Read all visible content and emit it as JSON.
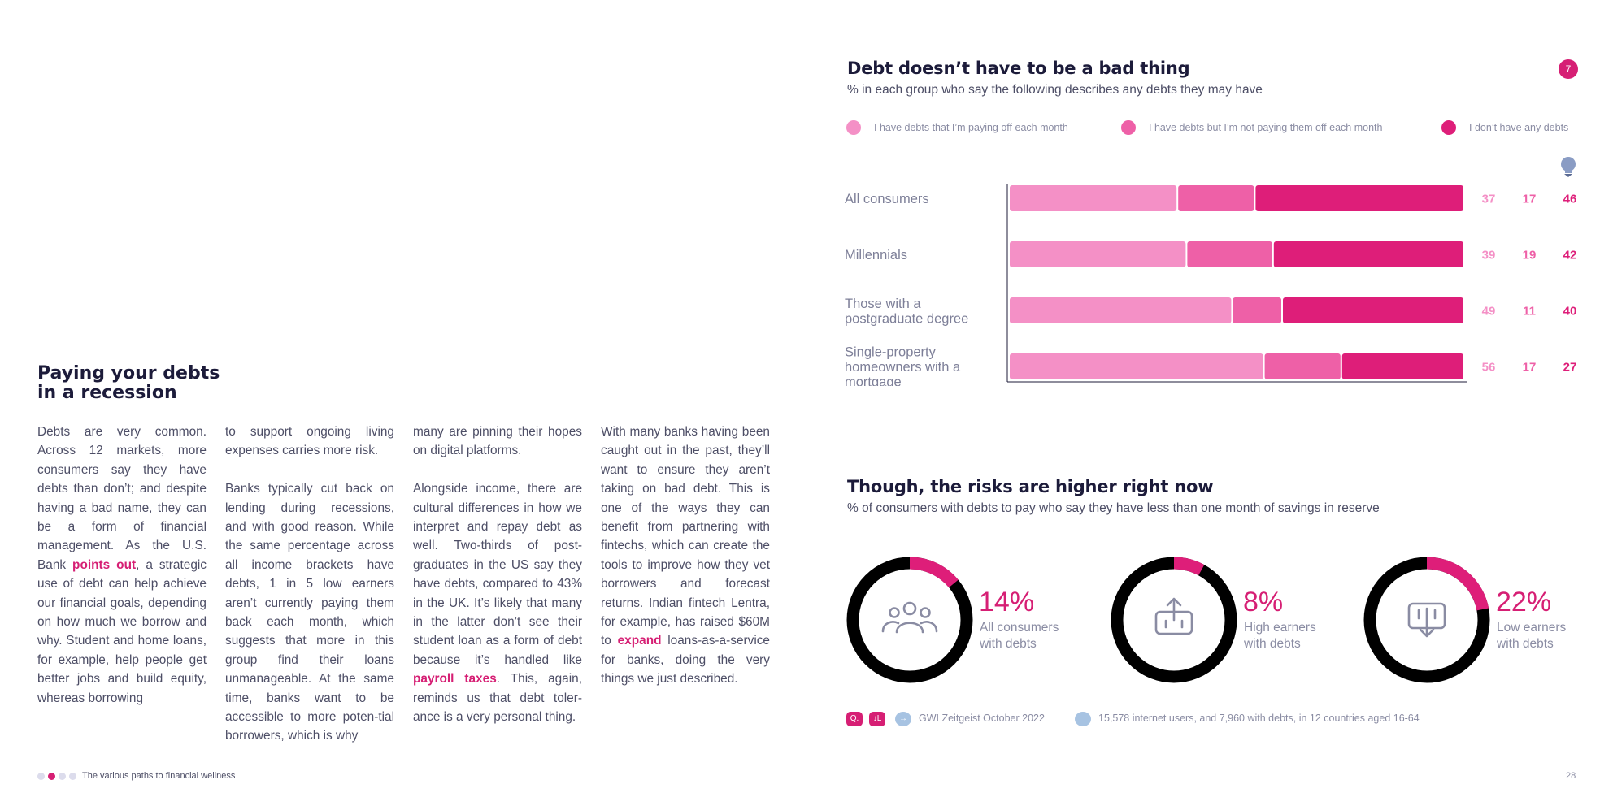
{
  "article": {
    "title_line1": "Paying your debts",
    "title_line2": "in a recession",
    "col1": {
      "p1_a": "Debts are very common. Across 12 markets, more consumers say they have debts than don’t; and despite having a bad name, they can be a form of financial management. As the U.S. Bank ",
      "p1_link": "points out",
      "p1_b": ", a strategic use of debt can help achieve our financial goals, depending on how much we borrow and why. Student and home loans, for example, help people get better jobs and build equity, whereas borrowing"
    },
    "col2": {
      "p1": "to support ongoing living expenses carries more risk.",
      "p2": "Banks typically cut back on lending during recessions, and with good reason. While the same percentage across all income brackets have debts, 1 in 5 low earners aren’t currently paying them back each month, which suggests that more in this group find their loans unmanageable. At the same time, banks want to be accessible to more poten-tial borrowers, which is why"
    },
    "col3": {
      "p1": "many are pinning their hopes on digital platforms.",
      "p2_a": "Alongside income, there are cultural differences in how we interpret and repay debt as well. Two-thirds of post-graduates in the US say they have debts, compared to 43% in the UK. It’s likely that many in the latter don’t see their student loan as a form of debt because it’s handled like ",
      "p2_link": "payroll taxes",
      "p2_b": ". This, again, reminds us that debt toler-ance is a very personal thing."
    },
    "col4": {
      "p1_a": "With many banks having been caught out in the past, they’ll want to ensure they aren’t taking on bad debt. This is one of the ways they can benefit from partnering with fintechs, which can create the tools to improve how they vet borrowers and forecast returns. Indian fintech Lentra, for example, has raised $60M to ",
      "p1_link": "expand",
      "p1_b": " loans-as-a-service for banks, doing the very things we just described."
    }
  },
  "page_badge": "7",
  "icons": {
    "bulb": "lightbulb-icon",
    "people": "people-group-icon",
    "export": "export-icon",
    "import": "import-icon"
  },
  "colors": {
    "light_pink": "#f490c6",
    "mid_pink": "#ee60a7",
    "magenta": "#de1e79",
    "ring_dark": "#000000",
    "text_dark": "#1c1b3a",
    "text_grey": "#8a8ca3",
    "note_blue": "#a7c3e2"
  },
  "chart_data": [
    {
      "type": "bar",
      "orientation": "horizontal-stacked-100",
      "title": "Debt doesn’t have to be a bad thing",
      "subtitle": "% in each group who say the following describes any debts they may have",
      "categories": [
        "All consumers",
        "Millennials",
        "Those with a postgraduate degree",
        "Single-property homeowners with a mortgage"
      ],
      "category_lines": [
        [
          "All consumers"
        ],
        [
          "Millennials"
        ],
        [
          "Those with a",
          "postgraduate degree"
        ],
        [
          "Single-property",
          "homeowners with a",
          "mortgage"
        ]
      ],
      "series": [
        {
          "name": "I have debts that I’m paying off each month",
          "color": "#f490c6",
          "values": [
            37,
            39,
            49,
            56
          ]
        },
        {
          "name": "I have debts but I’m not paying them off each month",
          "color": "#ee60a7",
          "values": [
            17,
            19,
            11,
            17
          ]
        },
        {
          "name": "I don’t have any debts",
          "color": "#de1e79",
          "values": [
            46,
            42,
            40,
            27
          ]
        }
      ],
      "xlim": [
        0,
        100
      ],
      "grid": false,
      "legend_position": "top"
    },
    {
      "type": "pie",
      "variant": "donut",
      "title": "Though, the risks are higher right now",
      "subtitle": "% of consumers with debts to pay who say they have less than one month of savings in reserve",
      "items": [
        {
          "value": 14,
          "label": "14%",
          "caption_line1": "All consumers",
          "caption_line2": "with debts",
          "icon": "people-group-icon"
        },
        {
          "value": 8,
          "label": "8%",
          "caption_line1": "High earners",
          "caption_line2": "with debts",
          "icon": "export-icon"
        },
        {
          "value": 22,
          "label": "22%",
          "caption_line1": "Low earners",
          "caption_line2": "with debts",
          "icon": "import-icon"
        }
      ]
    }
  ],
  "footnotes": {
    "badge_question": "Q.",
    "badge_chart": "↓L",
    "badge_source": "→",
    "source": "GWI Zeitgeist October 2022",
    "badge_base": "",
    "base": "15,578 internet users, and 7,960 with debts, in 12 countries aged 16-64"
  },
  "footer": {
    "section": "The various paths to financial wellness",
    "page": "28"
  }
}
